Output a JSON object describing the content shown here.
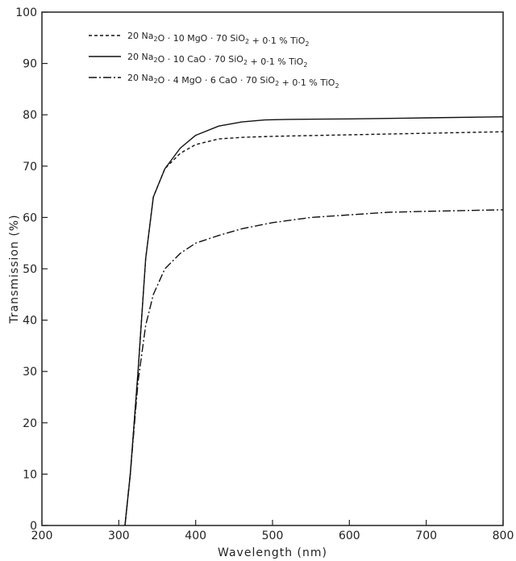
{
  "chart_data": {
    "type": "line",
    "xlabel": "Wavelength (nm)",
    "ylabel": "Transmission  (%)",
    "xlim": [
      200,
      800
    ],
    "ylim": [
      0,
      100
    ],
    "xticks": [
      200,
      300,
      400,
      500,
      600,
      700,
      800
    ],
    "yticks": [
      0,
      10,
      20,
      30,
      40,
      50,
      60,
      70,
      80,
      90,
      100
    ],
    "legend_position": "top-left",
    "series": [
      {
        "name": "20 Na2O · 10 MgO · 70 SiO2 + 0.1 % TiO2",
        "legend_parts": [
          [
            "20 Na",
            ""
          ],
          [
            "2",
            "sub"
          ],
          [
            "O · 10 MgO · 70 SiO",
            ""
          ],
          [
            "2",
            "sub"
          ],
          [
            " + 0·1 % TiO",
            ""
          ],
          [
            "2",
            "sub"
          ]
        ],
        "style": "dashed",
        "x": [
          308,
          315,
          325,
          335,
          345,
          360,
          380,
          400,
          430,
          460,
          500,
          600,
          700,
          800
        ],
        "y": [
          0,
          10,
          30,
          52,
          64,
          69.5,
          72.5,
          74.2,
          75.3,
          75.6,
          75.8,
          76.1,
          76.4,
          76.7
        ]
      },
      {
        "name": "20 Na2O · 10 CaO · 70 SiO2 + 0.1 % TiO2",
        "legend_parts": [
          [
            "20 Na",
            ""
          ],
          [
            "2",
            "sub"
          ],
          [
            "O · 10 CaO · 70 SiO",
            ""
          ],
          [
            "2",
            "sub"
          ],
          [
            " + 0·1 % TiO",
            ""
          ],
          [
            "2",
            "sub"
          ]
        ],
        "style": "solid",
        "x": [
          308,
          315,
          325,
          335,
          345,
          360,
          380,
          400,
          430,
          460,
          490,
          520,
          600,
          700,
          800
        ],
        "y": [
          0,
          10,
          30,
          52,
          64,
          69.5,
          73.5,
          76,
          77.8,
          78.6,
          79,
          79.1,
          79.2,
          79.4,
          79.6
        ]
      },
      {
        "name": "20 Na2O · 4 MgO · 6 CaO · 70 SiO2 + 0.1 % TiO2",
        "legend_parts": [
          [
            "20 Na",
            ""
          ],
          [
            "2",
            "sub"
          ],
          [
            "O · 4 MgO · 6 CaO · 70 SiO",
            ""
          ],
          [
            "2",
            "sub"
          ],
          [
            " + 0·1 % TiO",
            ""
          ],
          [
            "2",
            "sub"
          ]
        ],
        "style": "dashdot",
        "x": [
          308,
          315,
          325,
          335,
          345,
          360,
          380,
          400,
          430,
          460,
          500,
          550,
          600,
          650,
          700,
          800
        ],
        "y": [
          0,
          10,
          28,
          39,
          45,
          50,
          53,
          55,
          56.5,
          57.8,
          59,
          60,
          60.5,
          61,
          61.2,
          61.5
        ]
      }
    ]
  }
}
